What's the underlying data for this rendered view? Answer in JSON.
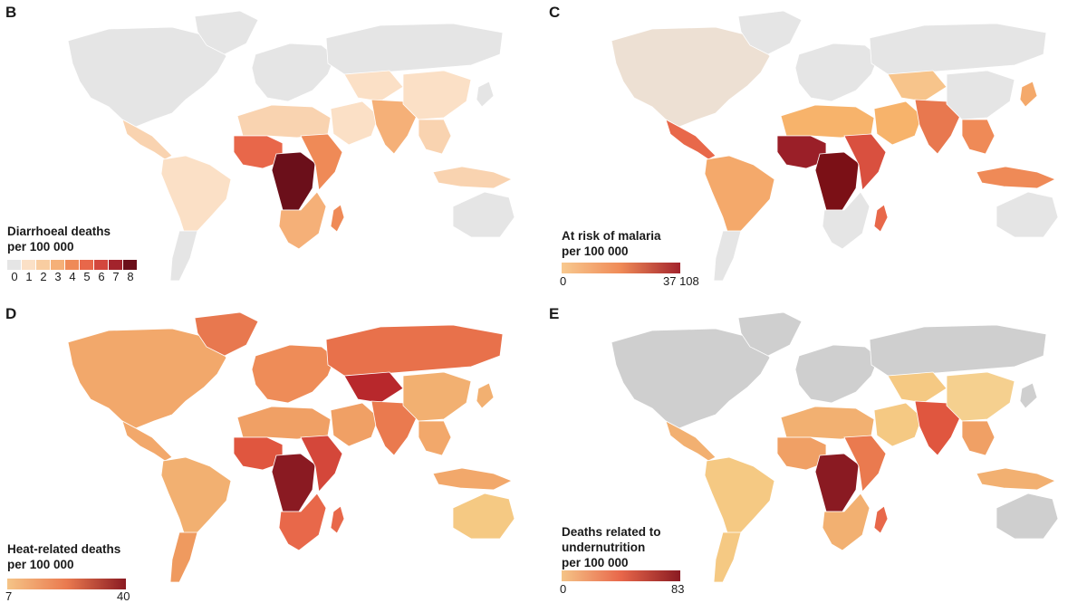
{
  "colors": {
    "no_data": "#e6e6e6",
    "land_grey": "#cfcfcf",
    "border": "#ffffff",
    "seq_light": "#f9d3a6",
    "seq_mid": "#e8684a",
    "seq_dark": "#7b1016"
  },
  "panels": {
    "b": {
      "letter": "B",
      "legend_title": "Diarrhoeal deaths",
      "legend_unit": "per 100 000",
      "legend_ticks": [
        "0",
        "1",
        "2",
        "3",
        "4",
        "5",
        "6",
        "7",
        "8"
      ],
      "legend_colors": [
        "#e5e5e5",
        "#fbe0c6",
        "#f9cda1",
        "#f5b078",
        "#ef8a57",
        "#e8674a",
        "#d3473e",
        "#a3232c",
        "#6b0f1a"
      ]
    },
    "c": {
      "letter": "C",
      "legend_title": "At risk of malaria",
      "legend_unit": "per 100 000",
      "legend_min": "0",
      "legend_max": "37 108",
      "gradient": [
        "#f8c98f",
        "#ef8a57",
        "#a3232c"
      ]
    },
    "d": {
      "letter": "D",
      "legend_title": "Heat-related deaths",
      "legend_unit": "per 100 000",
      "legend_min": "7",
      "legend_max": "40",
      "gradient": [
        "#f5c487",
        "#ea7a4f",
        "#8a1a22"
      ]
    },
    "e": {
      "letter": "E",
      "legend_title_1": "Deaths related to",
      "legend_title_2": "undernutrition",
      "legend_unit": "per 100 000",
      "legend_min": "0",
      "legend_max": "83",
      "gradient": [
        "#f5c487",
        "#e8674a",
        "#8a1a22"
      ]
    }
  },
  "region_fill": {
    "b": {
      "na": "#e5e5e5",
      "greenland": "#e5e5e5",
      "ca": "#f9d3b0",
      "sa": "#fbe0c6",
      "sa_south": "#e5e5e5",
      "europe": "#e5e5e5",
      "nafrica": "#f9d3b0",
      "wafrica": "#e8674a",
      "cafrica": "#6b0f1a",
      "eafrica": "#ef8a57",
      "safrica": "#f5b078",
      "madagascar": "#ef8a57",
      "mideast": "#fbe0c6",
      "russia": "#e5e5e5",
      "centralasia": "#fbe0c6",
      "southasia": "#f5b078",
      "china": "#fbe0c6",
      "seasia": "#f9d3b0",
      "indonesia": "#f9d3b0",
      "australia": "#e5e5e5",
      "japan": "#e5e5e5"
    },
    "c": {
      "na": "#ede0d3",
      "greenland": "#e5e5e5",
      "ca": "#e8684a",
      "sa": "#f4a96b",
      "sa_south": "#e5e5e5",
      "europe": "#e5e5e5",
      "nafrica": "#f7b36b",
      "wafrica": "#9a1f28",
      "cafrica": "#7b1016",
      "eafrica": "#d9503f",
      "safrica": "#e5e5e5",
      "madagascar": "#e8684a",
      "mideast": "#f7b36b",
      "russia": "#e5e5e5",
      "centralasia": "#f7c48b",
      "southasia": "#e8784f",
      "china": "#e5e5e5",
      "seasia": "#ef8a57",
      "indonesia": "#ef8a57",
      "australia": "#e5e5e5",
      "japan": "#f4a96b"
    },
    "d": {
      "na": "#f2a86b",
      "greenland": "#e8784f",
      "ca": "#f2a86b",
      "sa": "#f2b071",
      "sa_south": "#ef9a5f",
      "europe": "#ee8c58",
      "nafrica": "#f0a065",
      "wafrica": "#e0563f",
      "cafrica": "#8a1a22",
      "eafrica": "#d4473a",
      "safrica": "#e8684a",
      "madagascar": "#e8684a",
      "mideast": "#f0a065",
      "russia": "#e8714b",
      "centralasia": "#b8282c",
      "southasia": "#ea7a4f",
      "china": "#f2b071",
      "seasia": "#f2a86b",
      "indonesia": "#f2a86b",
      "australia": "#f5c983",
      "japan": "#f2b071"
    },
    "e": {
      "na": "#cfcfcf",
      "greenland": "#cfcfcf",
      "ca": "#f2b071",
      "sa": "#f5c983",
      "sa_south": "#f5c983",
      "europe": "#cfcfcf",
      "nafrica": "#f2b071",
      "wafrica": "#f0a065",
      "cafrica": "#8a1a22",
      "eafrica": "#ea7a4f",
      "safrica": "#f2b071",
      "madagascar": "#e8684a",
      "mideast": "#f5c983",
      "russia": "#cfcfcf",
      "centralasia": "#f5c983",
      "southasia": "#e0563f",
      "china": "#f5d08f",
      "seasia": "#f0a065",
      "indonesia": "#f2b071",
      "australia": "#cfcfcf",
      "japan": "#cfcfcf"
    }
  }
}
